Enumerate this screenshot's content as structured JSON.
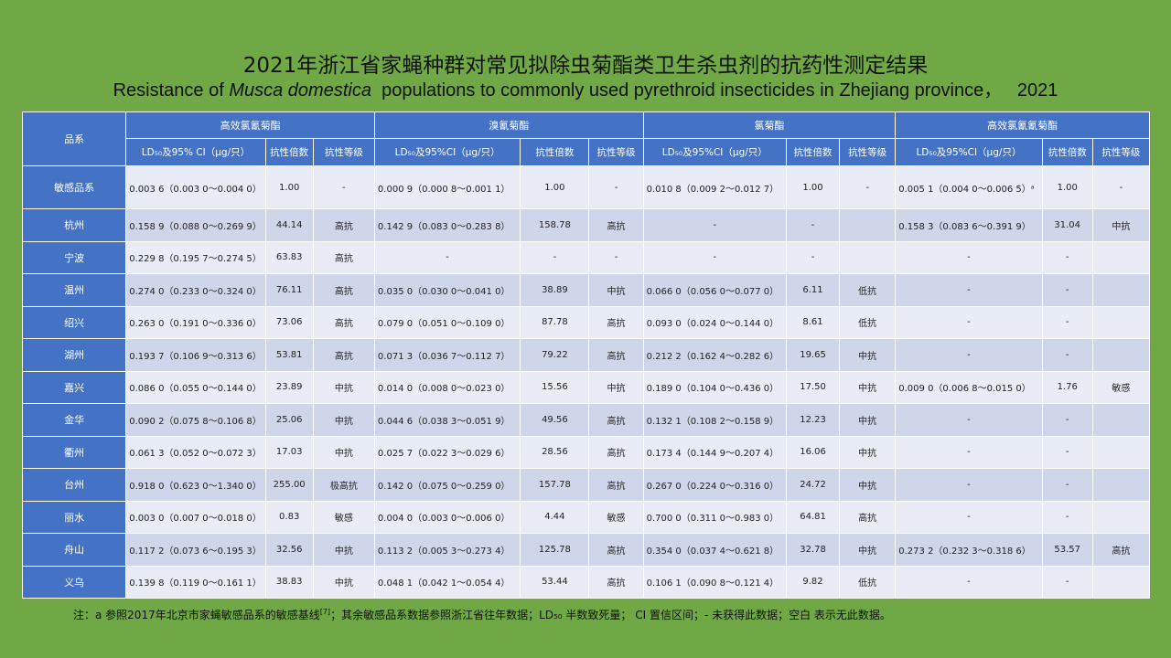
{
  "title_cn": "2021年浙江省家蝇种群对常见拟除虫菊酯类卫生杀虫剂的抗药性测定结果",
  "title_en": {
    "before": "Resistance of ",
    "italic": "Musca domestica",
    "after": "  populations to commonly used pyrethroid insecticides in Zhejiang province，   2021"
  },
  "table": {
    "strain_header": "品系",
    "groups": [
      "高效氯氰菊酯",
      "溴氰菊酯",
      "氯菊酯",
      "高效氯氰氰菊酯"
    ],
    "subheaders": [
      "LD₅₀及95% CI（μg/只）",
      "抗性倍数",
      "抗性等级",
      "LD₅₀及95%CI（μg/只）",
      "抗性倍数",
      "抗性等级",
      "LD₅₀及95%CI（μg/只）",
      "抗性倍数",
      "抗性等级",
      "LD₅₀及95%CI（μg/只）",
      "抗性倍数",
      "抗性等级"
    ],
    "rows": [
      {
        "strain": "敏感品系",
        "c": [
          "0.003 6（0.003 0～0.004 0）",
          "1.00",
          "-",
          "0.000 9（0.000 8～0.001 1）",
          "1.00",
          "-",
          "0.010 8（0.009 2～0.012 7）",
          "1.00",
          "-",
          "0.005 1（0.004 0～0.006 5）ᵃ",
          "1.00",
          "-"
        ]
      },
      {
        "strain": "杭州",
        "c": [
          "0.158 9（0.088 0～0.269 9）",
          "44.14",
          "高抗",
          "0.142 9（0.083 0～0.283 8）",
          "158.78",
          "高抗",
          "-",
          "-",
          "",
          "0.158 3（0.083 6～0.391 9）",
          "31.04",
          "中抗"
        ]
      },
      {
        "strain": "宁波",
        "c": [
          "0.229 8（0.195 7～0.274 5）",
          "63.83",
          "高抗",
          "-",
          "-",
          "-",
          "-",
          "-",
          "",
          "-",
          "-",
          ""
        ]
      },
      {
        "strain": "温州",
        "c": [
          "0.274 0（0.233 0～0.324 0）",
          "76.11",
          "高抗",
          "0.035 0（0.030 0～0.041 0）",
          "38.89",
          "中抗",
          "0.066 0（0.056 0～0.077 0）",
          "6.11",
          "低抗",
          "-",
          "-",
          ""
        ]
      },
      {
        "strain": "绍兴",
        "c": [
          "0.263 0（0.191 0～0.336 0）",
          "73.06",
          "高抗",
          "0.079 0（0.051 0～0.109 0）",
          "87.78",
          "高抗",
          "0.093 0（0.024 0～0.144 0）",
          "8.61",
          "低抗",
          "-",
          "-",
          ""
        ]
      },
      {
        "strain": "湖州",
        "c": [
          "0.193 7（0.106 9～0.313 6）",
          "53.81",
          "高抗",
          "0.071 3（0.036 7～0.112 7）",
          "79.22",
          "高抗",
          "0.212 2（0.162 4～0.282 6）",
          "19.65",
          "中抗",
          "-",
          "-",
          ""
        ]
      },
      {
        "strain": "嘉兴",
        "c": [
          "0.086 0（0.055 0～0.144 0）",
          "23.89",
          "中抗",
          "0.014 0（0.008 0～0.023 0）",
          "15.56",
          "中抗",
          "0.189 0（0.104 0～0.436 0）",
          "17.50",
          "中抗",
          "0.009 0（0.006 8～0.015 0）",
          "1.76",
          "敏感"
        ]
      },
      {
        "strain": "金华",
        "c": [
          "0.090 2（0.075 8～0.106 8）",
          "25.06",
          "中抗",
          "0.044 6（0.038 3～0.051 9）",
          "49.56",
          "高抗",
          "0.132 1（0.108 2～0.158 9）",
          "12.23",
          "中抗",
          "-",
          "-",
          ""
        ]
      },
      {
        "strain": "衢州",
        "c": [
          "0.061 3（0.052 0～0.072 3）",
          "17.03",
          "中抗",
          "0.025 7（0.022 3～0.029 6）",
          "28.56",
          "高抗",
          "0.173 4（0.144 9～0.207 4）",
          "16.06",
          "中抗",
          "-",
          "-",
          ""
        ]
      },
      {
        "strain": "台州",
        "c": [
          "0.918 0（0.623 0～1.340 0）",
          "255.00",
          "极高抗",
          "0.142 0（0.075 0～0.259 0）",
          "157.78",
          "高抗",
          "0.267 0（0.224 0～0.316 0）",
          "24.72",
          "中抗",
          "-",
          "-",
          ""
        ]
      },
      {
        "strain": "丽水",
        "c": [
          "0.003 0（0.007 0～0.018 0）",
          "0.83",
          "敏感",
          "0.004 0（0.003 0～0.006 0）",
          "4.44",
          "敏感",
          "0.700 0（0.311 0～0.983 0）",
          "64.81",
          "高抗",
          "-",
          "-",
          ""
        ]
      },
      {
        "strain": "舟山",
        "c": [
          "0.117 2（0.073 6～0.195 3）",
          "32.56",
          "中抗",
          "0.113 2（0.005 3～0.273 4）",
          "125.78",
          "高抗",
          "0.354 0（0.037 4～0.621 8）",
          "32.78",
          "中抗",
          "0.273 2（0.232 3～0.318 6）",
          "53.57",
          "高抗"
        ]
      },
      {
        "strain": "义乌",
        "c": [
          "0.139 8（0.119 0～0.161 1）",
          "38.83",
          "中抗",
          "0.048 1（0.042 1～0.054 4）",
          "53.44",
          "高抗",
          "0.106 1（0.090 8～0.121 4）",
          "9.82",
          "低抗",
          "-",
          "-",
          ""
        ]
      }
    ]
  },
  "note": {
    "before": "注：a 参照2017年北京市家蝇敏感品系的敏感基线",
    "ref": "[7]",
    "after": "；其余敏感品系数据参照浙江省往年数据；LD₅₀ 半数致死量；  CI  置信区间；- 未获得此数据；空白  表示无此数据。"
  }
}
